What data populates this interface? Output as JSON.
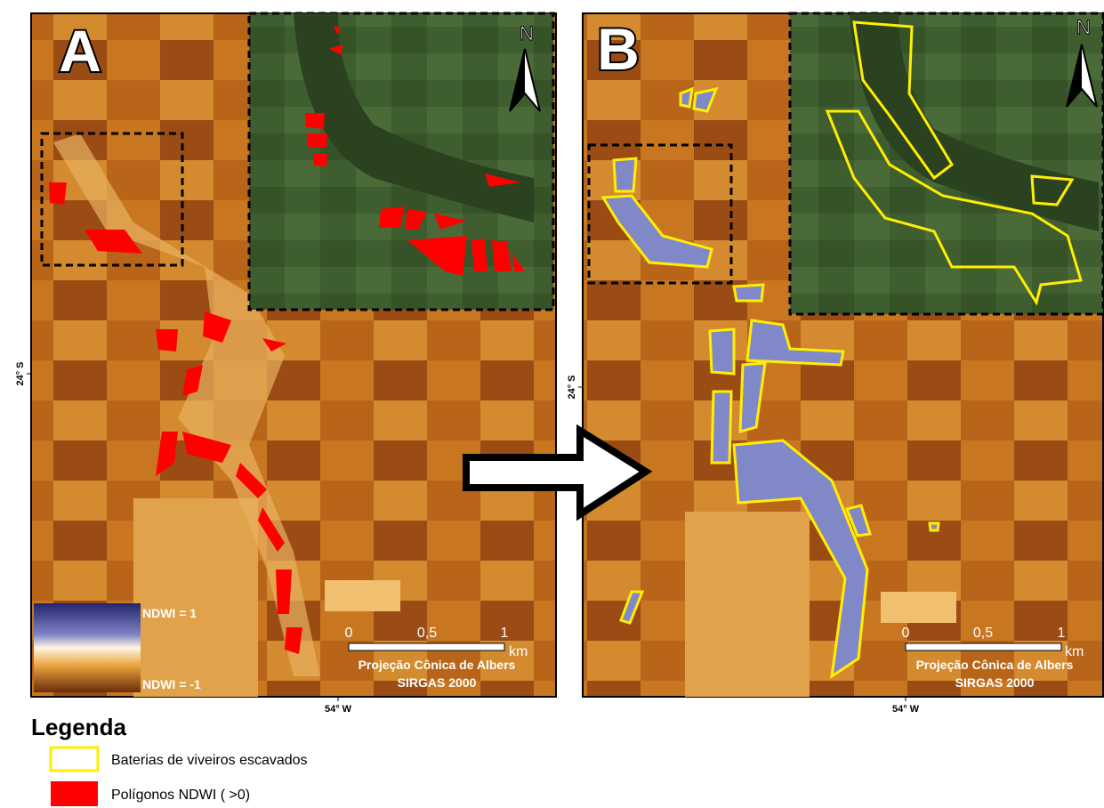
{
  "panels": [
    {
      "label": "A",
      "north": "N",
      "lat": "24° S",
      "lon": "54° W",
      "scale": {
        "ticks": [
          "0",
          "0,5",
          "1"
        ],
        "unit": "km"
      },
      "projection": [
        "Projeção Cônica de Albers",
        "SIRGAS 2000"
      ],
      "ndwi": [
        "NDWI = 1",
        "NDWI = -1"
      ]
    },
    {
      "label": "B",
      "north": "N",
      "lat": "24° S",
      "lon": "54° W",
      "scale": {
        "ticks": [
          "0",
          "0,5",
          "1"
        ],
        "unit": "km"
      },
      "projection": [
        "Projeção Cônica de Albers",
        "SIRGAS 2000"
      ]
    }
  ],
  "legend": {
    "title": "Legenda",
    "items": [
      "Baterias de viveiros escavados",
      "Polígonos NDWI ( >0)"
    ]
  }
}
